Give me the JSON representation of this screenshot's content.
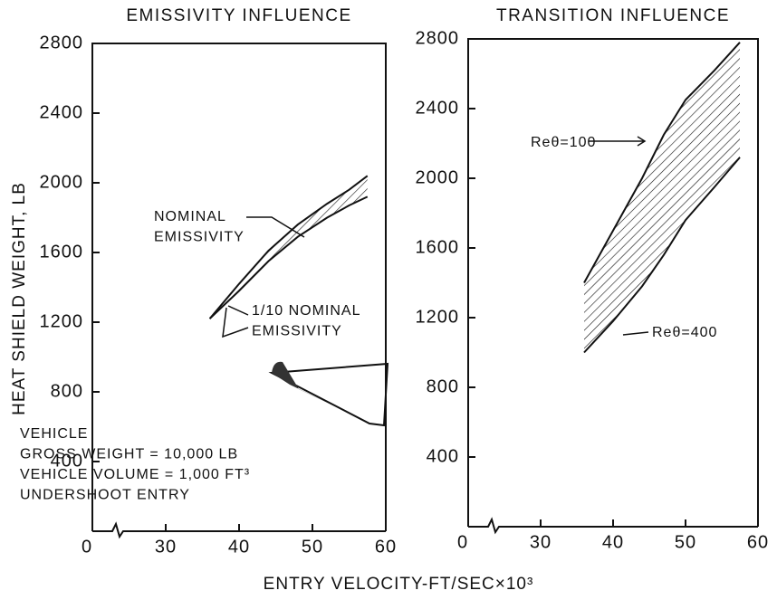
{
  "x_label": "ENTRY VELOCITY-FT/SEC×10³",
  "y_label": "HEAT SHIELD WEIGHT, LB",
  "chart_data": [
    {
      "type": "band",
      "title": "EMISSIVITY INFLUENCE",
      "xlim": [
        20,
        60
      ],
      "ylim": [
        0,
        2800
      ],
      "axis_break": true,
      "xticks": [
        0,
        30,
        40,
        50,
        60
      ],
      "yticks": [
        400,
        800,
        1200,
        1600,
        2000,
        2400,
        2800
      ],
      "color": "#111",
      "x": [
        36,
        40,
        44,
        48,
        52,
        55,
        57.5
      ],
      "high": [
        1220,
        1420,
        1610,
        1760,
        1880,
        1960,
        2040
      ],
      "low": [
        1220,
        1380,
        1550,
        1690,
        1800,
        1870,
        1920
      ],
      "annotations": [
        [
          "NOMINAL",
          "EMISSIVITY"
        ],
        [
          "1/10 NOMINAL",
          "EMISSIVITY"
        ],
        [
          "VEHICLE",
          "GROSS WEIGHT = 10,000 LB",
          "VEHICLE VOLUME = 1,000 FT³",
          "UNDERSHOOT ENTRY"
        ]
      ]
    },
    {
      "type": "band",
      "title": "TRANSITION INFLUENCE",
      "xlim": [
        20,
        60
      ],
      "ylim": [
        0,
        2800
      ],
      "axis_break": true,
      "xticks": [
        0,
        30,
        40,
        50,
        60
      ],
      "yticks": [
        400,
        800,
        1200,
        1600,
        2000,
        2400,
        2800
      ],
      "color": "#111",
      "x": [
        36,
        40,
        44,
        47,
        50,
        54,
        57.5
      ],
      "high": [
        1400,
        1700,
        2000,
        2250,
        2450,
        2620,
        2780
      ],
      "low": [
        1000,
        1180,
        1380,
        1560,
        1760,
        1950,
        2120
      ],
      "annotations": [
        [
          "Reθ=100"
        ],
        [
          "Reθ=400"
        ]
      ]
    }
  ]
}
